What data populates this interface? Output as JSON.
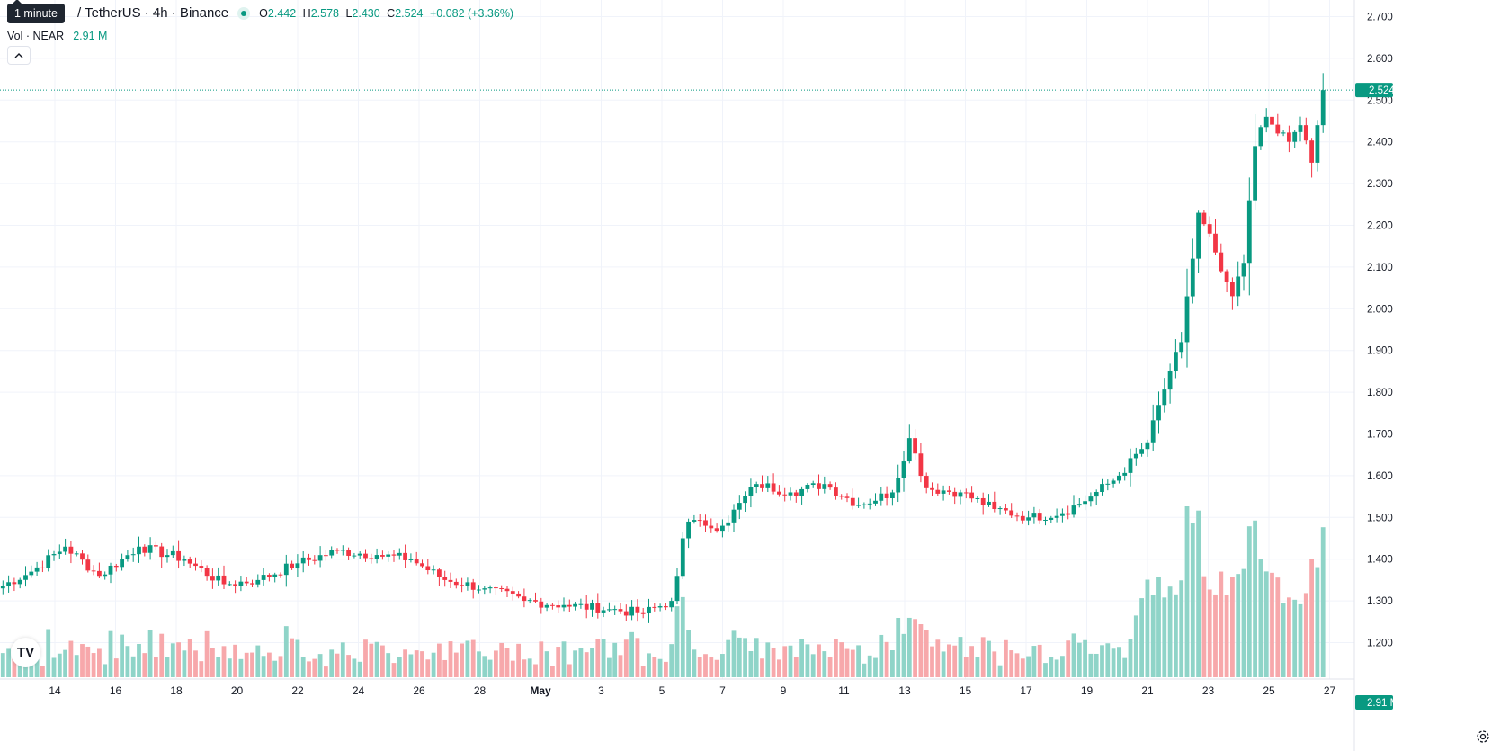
{
  "header": {
    "tooltip": "1 minute",
    "symbol": "/ TetherUS · 4h · Binance",
    "ohlc": {
      "open_label": "O",
      "open": "2.442",
      "high_label": "H",
      "high": "2.578",
      "low_label": "L",
      "low": "2.430",
      "close_label": "C",
      "close": "2.524",
      "change": "+0.082 (+3.36%)"
    }
  },
  "volume_legend": {
    "label": "Vol · NEAR",
    "value": "2.91 M"
  },
  "collapse_icon": "chevron-up-icon",
  "logo": "TV",
  "colors": {
    "up": "#089981",
    "down": "#F23645",
    "vol_up": "#8fd4c8",
    "vol_down": "#f7a8ab",
    "grid": "#f0f3fa"
  },
  "chart_data": {
    "type": "candlestick",
    "symbol": "NEAR/USDT",
    "interval": "4h",
    "price_axis": {
      "range": [
        1.13,
        2.735
      ],
      "ticks": [
        "2.700",
        "2.600",
        "2.500",
        "2.400",
        "2.300",
        "2.200",
        "2.100",
        "2.000",
        "1.900",
        "1.800",
        "1.700",
        "1.600",
        "1.500",
        "1.400",
        "1.300",
        "1.200"
      ],
      "last_price": "2.524",
      "volume_tag": "2.91 M"
    },
    "time_axis": {
      "ticks": [
        "14",
        "16",
        "18",
        "20",
        "22",
        "24",
        "26",
        "28",
        "May",
        "3",
        "5",
        "7",
        "9",
        "11",
        "13",
        "15",
        "17",
        "19",
        "21",
        "23",
        "25",
        "27"
      ]
    },
    "close_path": [
      {
        "i": 0,
        "c": 1.33
      },
      {
        "i": 6,
        "c": 1.37
      },
      {
        "i": 12,
        "c": 1.43
      },
      {
        "i": 18,
        "c": 1.36
      },
      {
        "i": 25,
        "c": 1.43
      },
      {
        "i": 33,
        "c": 1.4
      },
      {
        "i": 40,
        "c": 1.34
      },
      {
        "i": 46,
        "c": 1.35
      },
      {
        "i": 53,
        "c": 1.39
      },
      {
        "i": 60,
        "c": 1.42
      },
      {
        "i": 67,
        "c": 1.41
      },
      {
        "i": 73,
        "c": 1.4
      },
      {
        "i": 79,
        "c": 1.35
      },
      {
        "i": 86,
        "c": 1.33
      },
      {
        "i": 93,
        "c": 1.3
      },
      {
        "i": 100,
        "c": 1.29
      },
      {
        "i": 108,
        "c": 1.28
      },
      {
        "i": 114,
        "c": 1.27
      },
      {
        "i": 119,
        "c": 1.3
      },
      {
        "i": 120,
        "c": 1.36
      },
      {
        "i": 121,
        "c": 1.45
      },
      {
        "i": 122,
        "c": 1.49
      },
      {
        "i": 125,
        "c": 1.48
      },
      {
        "i": 128,
        "c": 1.48
      },
      {
        "i": 134,
        "c": 1.58
      },
      {
        "i": 140,
        "c": 1.56
      },
      {
        "i": 146,
        "c": 1.58
      },
      {
        "i": 152,
        "c": 1.53
      },
      {
        "i": 158,
        "c": 1.56
      },
      {
        "i": 161,
        "c": 1.69
      },
      {
        "i": 164,
        "c": 1.57
      },
      {
        "i": 170,
        "c": 1.56
      },
      {
        "i": 176,
        "c": 1.52
      },
      {
        "i": 182,
        "c": 1.5
      },
      {
        "i": 188,
        "c": 1.51
      },
      {
        "i": 193,
        "c": 1.55
      },
      {
        "i": 198,
        "c": 1.6
      },
      {
        "i": 203,
        "c": 1.68
      },
      {
        "i": 207,
        "c": 1.85
      },
      {
        "i": 209,
        "c": 1.92
      },
      {
        "i": 211,
        "c": 2.12
      },
      {
        "i": 212,
        "c": 2.23
      },
      {
        "i": 214,
        "c": 2.18
      },
      {
        "i": 216,
        "c": 2.09
      },
      {
        "i": 218,
        "c": 2.03
      },
      {
        "i": 220,
        "c": 2.11
      },
      {
        "i": 221,
        "c": 2.26
      },
      {
        "i": 222,
        "c": 2.39
      },
      {
        "i": 224,
        "c": 2.46
      },
      {
        "i": 226,
        "c": 2.42
      },
      {
        "i": 228,
        "c": 2.4
      },
      {
        "i": 230,
        "c": 2.44
      },
      {
        "i": 232,
        "c": 2.35
      },
      {
        "i": 233,
        "c": 2.44
      },
      {
        "i": 234,
        "c": 2.524
      }
    ],
    "volume_peaks": [
      "2.91 M"
    ]
  }
}
